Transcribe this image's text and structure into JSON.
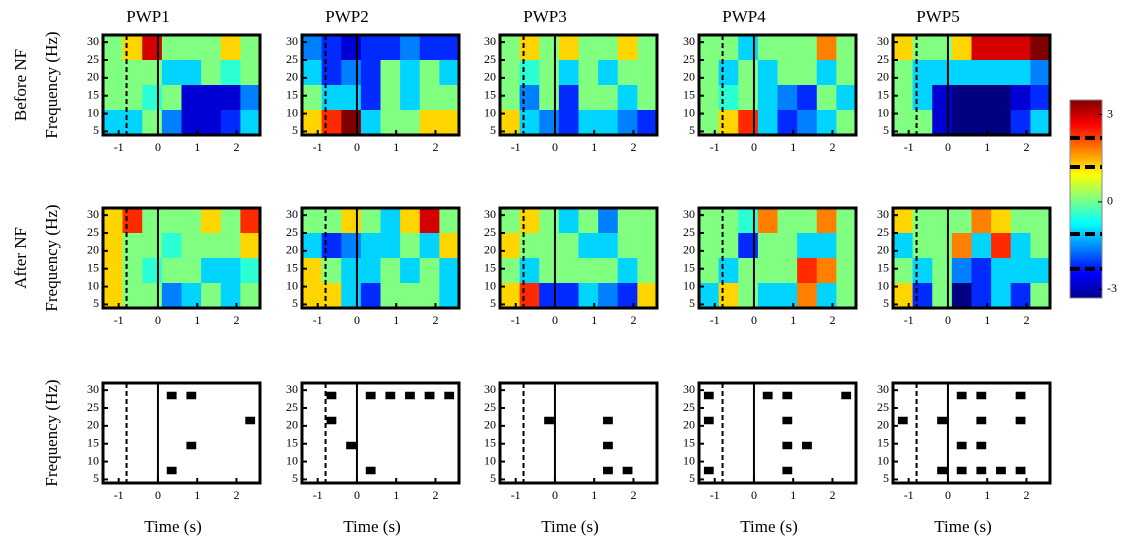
{
  "column_titles": [
    "PWP1",
    "PWP2",
    "PWP3",
    "PWP4",
    "PWP5"
  ],
  "row_labels": [
    "Before NF",
    "After NF"
  ],
  "colorbar": {
    "colormap": "jet",
    "ylim": [
      -3.3,
      3.5
    ],
    "yticks": [
      3,
      0,
      -3
    ],
    "dashes": [
      2.2,
      1.2,
      -1.1,
      -2.3
    ]
  },
  "chart_data": [
    {
      "type": "heatmap",
      "colormap": "jet",
      "ylabel": "Frequency (Hz)",
      "xlim": [
        -1.4,
        2.6
      ],
      "ylim": [
        4,
        32
      ],
      "xticks": [
        -1,
        0,
        1,
        2
      ],
      "yticks": [
        5,
        10,
        15,
        20,
        25,
        30
      ],
      "vlines": [
        {
          "x": -0.8,
          "style": "dashed"
        },
        {
          "x": 0,
          "style": "solid"
        }
      ],
      "x": [
        -1.15,
        -0.65,
        -0.15,
        0.35,
        0.85,
        1.35,
        1.85,
        2.35
      ],
      "y": [
        28.5,
        21.5,
        14.5,
        7.5
      ],
      "values": [
        [
          0,
          1,
          2.5,
          0,
          0,
          0,
          1,
          0
        ],
        [
          0,
          0,
          0,
          -1,
          -1,
          0,
          -0.5,
          0
        ],
        [
          0,
          0,
          -0.5,
          0,
          -2.5,
          -2.5,
          -2.5,
          -1.5
        ],
        [
          -1,
          -1,
          0,
          -1.5,
          -2.5,
          -2.5,
          -2,
          -1
        ]
      ]
    },
    {
      "type": "heatmap",
      "colormap": "jet",
      "xlim": [
        -1.4,
        2.6
      ],
      "ylim": [
        4,
        32
      ],
      "xticks": [
        -1,
        0,
        1,
        2
      ],
      "yticks": [
        5,
        10,
        15,
        20,
        25,
        30
      ],
      "vlines": [
        {
          "x": -0.8,
          "style": "dashed"
        },
        {
          "x": 0,
          "style": "solid"
        }
      ],
      "x": [
        -1.15,
        -0.65,
        -0.15,
        0.35,
        0.85,
        1.35,
        1.85,
        2.35
      ],
      "y": [
        28.5,
        21.5,
        14.5,
        7.5
      ],
      "values": [
        [
          -1.5,
          -2,
          -2.5,
          -2,
          -2,
          -1.5,
          -2,
          -2
        ],
        [
          -1,
          -2,
          -1.5,
          -2,
          0,
          -1,
          0,
          -1
        ],
        [
          0,
          -1,
          -1,
          -2,
          0,
          -1,
          0,
          0
        ],
        [
          1,
          2,
          3,
          -1,
          0,
          0,
          1,
          1
        ]
      ]
    },
    {
      "type": "heatmap",
      "colormap": "jet",
      "xlim": [
        -1.4,
        2.6
      ],
      "ylim": [
        4,
        32
      ],
      "xticks": [
        -1,
        0,
        1,
        2
      ],
      "yticks": [
        5,
        10,
        15,
        20,
        25,
        30
      ],
      "vlines": [
        {
          "x": -0.8,
          "style": "dashed"
        },
        {
          "x": 0,
          "style": "solid"
        }
      ],
      "x": [
        -1.15,
        -0.65,
        -0.15,
        0.35,
        0.85,
        1.35,
        1.85,
        2.35
      ],
      "y": [
        28.5,
        21.5,
        14.5,
        7.5
      ],
      "values": [
        [
          0,
          1,
          0,
          1,
          0,
          0,
          1,
          0
        ],
        [
          0,
          -0.5,
          0,
          -1,
          0,
          -1,
          0,
          0
        ],
        [
          0,
          -1.5,
          0,
          -2,
          0,
          0,
          -1,
          0
        ],
        [
          1,
          -1,
          -1.5,
          -2,
          -1,
          -1,
          -1.5,
          -2
        ]
      ]
    },
    {
      "type": "heatmap",
      "colormap": "jet",
      "xlim": [
        -1.4,
        2.6
      ],
      "ylim": [
        4,
        32
      ],
      "xticks": [
        -1,
        0,
        1,
        2
      ],
      "yticks": [
        5,
        10,
        15,
        20,
        25,
        30
      ],
      "vlines": [
        {
          "x": -0.8,
          "style": "dashed"
        },
        {
          "x": 0,
          "style": "solid"
        }
      ],
      "x": [
        -1.15,
        -0.65,
        -0.15,
        0.35,
        0.85,
        1.35,
        1.85,
        2.35
      ],
      "y": [
        28.5,
        21.5,
        14.5,
        7.5
      ],
      "values": [
        [
          0,
          0,
          -1,
          0,
          0,
          0,
          1.5,
          0
        ],
        [
          0,
          -1,
          0,
          -1,
          0,
          0,
          -1,
          0
        ],
        [
          0,
          -0.5,
          0,
          -1,
          -1.5,
          -2,
          0,
          -1
        ],
        [
          0,
          1,
          2,
          -1,
          -2,
          -1.5,
          -1,
          0
        ]
      ]
    },
    {
      "type": "heatmap",
      "colormap": "jet",
      "xlim": [
        -1.4,
        2.6
      ],
      "ylim": [
        4,
        32
      ],
      "xticks": [
        -1,
        0,
        1,
        2
      ],
      "yticks": [
        5,
        10,
        15,
        20,
        25,
        30
      ],
      "vlines": [
        {
          "x": -0.8,
          "style": "dashed"
        },
        {
          "x": 0,
          "style": "solid"
        }
      ],
      "x": [
        -1.15,
        -0.65,
        -0.15,
        0.35,
        0.85,
        1.35,
        1.85,
        2.35
      ],
      "y": [
        28.5,
        21.5,
        14.5,
        7.5
      ],
      "values": [
        [
          1,
          0,
          0,
          1,
          2.5,
          2.5,
          2.5,
          3
        ],
        [
          0,
          -1,
          -1,
          -1,
          -1,
          -1,
          -1,
          -1.5
        ],
        [
          0,
          -1,
          -2.5,
          -3,
          -3,
          -3,
          -2.5,
          -2
        ],
        [
          0,
          0,
          -2.5,
          -3,
          -3,
          -3,
          -2,
          -1
        ]
      ]
    },
    {
      "type": "heatmap",
      "colormap": "jet",
      "ylabel": "Frequency (Hz)",
      "xlim": [
        -1.4,
        2.6
      ],
      "ylim": [
        4,
        32
      ],
      "xticks": [
        -1,
        0,
        1,
        2
      ],
      "yticks": [
        5,
        10,
        15,
        20,
        25,
        30
      ],
      "vlines": [
        {
          "x": -0.8,
          "style": "dashed"
        },
        {
          "x": 0,
          "style": "solid"
        }
      ],
      "x": [
        -1.15,
        -0.65,
        -0.15,
        0.35,
        0.85,
        1.35,
        1.85,
        2.35
      ],
      "y": [
        28.5,
        21.5,
        14.5,
        7.5
      ],
      "values": [
        [
          1,
          2,
          0,
          0,
          0,
          1,
          0,
          2
        ],
        [
          1,
          0,
          0,
          -0.5,
          0,
          0,
          0,
          1
        ],
        [
          1,
          0,
          -0.5,
          0,
          0,
          -1,
          -1,
          -0.5
        ],
        [
          1,
          0,
          0,
          -1.5,
          -1,
          0,
          -1,
          0
        ]
      ]
    },
    {
      "type": "heatmap",
      "colormap": "jet",
      "xlim": [
        -1.4,
        2.6
      ],
      "ylim": [
        4,
        32
      ],
      "xticks": [
        -1,
        0,
        1,
        2
      ],
      "yticks": [
        5,
        10,
        15,
        20,
        25,
        30
      ],
      "vlines": [
        {
          "x": -0.8,
          "style": "dashed"
        },
        {
          "x": 0,
          "style": "solid"
        }
      ],
      "x": [
        -1.15,
        -0.65,
        -0.15,
        0.35,
        0.85,
        1.35,
        1.85,
        2.35
      ],
      "y": [
        28.5,
        21.5,
        14.5,
        7.5
      ],
      "values": [
        [
          0,
          0,
          1,
          0,
          -1,
          1,
          2.5,
          0
        ],
        [
          -1,
          -2,
          -1.5,
          -1,
          -1,
          0,
          -1,
          1
        ],
        [
          1,
          0,
          -1,
          -1,
          0,
          -1,
          0,
          -1
        ],
        [
          1,
          1,
          -1,
          -2,
          0,
          0,
          0,
          -1
        ]
      ]
    },
    {
      "type": "heatmap",
      "colormap": "jet",
      "xlim": [
        -1.4,
        2.6
      ],
      "ylim": [
        4,
        32
      ],
      "xticks": [
        -1,
        0,
        1,
        2
      ],
      "yticks": [
        5,
        10,
        15,
        20,
        25,
        30
      ],
      "vlines": [
        {
          "x": -0.8,
          "style": "dashed"
        },
        {
          "x": 0,
          "style": "solid"
        }
      ],
      "x": [
        -1.15,
        -0.65,
        -0.15,
        0.35,
        0.85,
        1.35,
        1.85,
        2.35
      ],
      "y": [
        28.5,
        21.5,
        14.5,
        7.5
      ],
      "values": [
        [
          0,
          1,
          0,
          -1,
          0,
          -1.5,
          0,
          0
        ],
        [
          1,
          0,
          0,
          0,
          -1,
          -1,
          0,
          0
        ],
        [
          0,
          -1,
          0,
          0,
          0,
          0,
          -1,
          0
        ],
        [
          1,
          2,
          -2,
          -2,
          -1,
          -1.5,
          -2,
          1
        ]
      ]
    },
    {
      "type": "heatmap",
      "colormap": "jet",
      "xlim": [
        -1.4,
        2.6
      ],
      "ylim": [
        4,
        32
      ],
      "xticks": [
        -1,
        0,
        1,
        2
      ],
      "yticks": [
        5,
        10,
        15,
        20,
        25,
        30
      ],
      "vlines": [
        {
          "x": -0.8,
          "style": "dashed"
        },
        {
          "x": 0,
          "style": "solid"
        }
      ],
      "x": [
        -1.15,
        -0.65,
        -0.15,
        0.35,
        0.85,
        1.35,
        1.85,
        2.35
      ],
      "y": [
        28.5,
        21.5,
        14.5,
        7.5
      ],
      "values": [
        [
          0,
          0,
          -0.5,
          1.5,
          0,
          0,
          1.5,
          0
        ],
        [
          0,
          0,
          -2,
          0,
          0,
          -1,
          -1,
          0
        ],
        [
          0,
          -1,
          0,
          0,
          0,
          2,
          1.5,
          0
        ],
        [
          -1,
          1,
          0,
          -1,
          -1,
          1.5,
          -1,
          0
        ]
      ]
    },
    {
      "type": "heatmap",
      "colormap": "jet",
      "xlim": [
        -1.4,
        2.6
      ],
      "ylim": [
        4,
        32
      ],
      "xticks": [
        -1,
        0,
        1,
        2
      ],
      "yticks": [
        5,
        10,
        15,
        20,
        25,
        30
      ],
      "vlines": [
        {
          "x": -0.8,
          "style": "dashed"
        },
        {
          "x": 0,
          "style": "solid"
        }
      ],
      "x": [
        -1.15,
        -0.65,
        -0.15,
        0.35,
        0.85,
        1.35,
        1.85,
        2.35
      ],
      "y": [
        28.5,
        21.5,
        14.5,
        7.5
      ],
      "values": [
        [
          1,
          0,
          0,
          0,
          1.5,
          1,
          0,
          0
        ],
        [
          -1,
          0,
          0,
          1.5,
          -1,
          2,
          -1,
          0
        ],
        [
          0,
          -1,
          0,
          -1.5,
          -2,
          -1,
          -1,
          -1
        ],
        [
          1,
          -2,
          0,
          -3,
          -2,
          -1,
          -2,
          0
        ]
      ]
    },
    {
      "type": "binary",
      "color": "#000000",
      "ylabel": "Frequency (Hz)",
      "xlabel": "Time (s)",
      "xlim": [
        -1.4,
        2.6
      ],
      "ylim": [
        4,
        32
      ],
      "xticks": [
        -1,
        0,
        1,
        2
      ],
      "yticks": [
        5,
        10,
        15,
        20,
        25,
        30
      ],
      "vlines": [
        {
          "x": -0.8,
          "style": "dashed"
        },
        {
          "x": 0,
          "style": "solid"
        }
      ],
      "x": [
        -1.15,
        -0.65,
        -0.15,
        0.35,
        0.85,
        1.35,
        1.85,
        2.35
      ],
      "y": [
        28.5,
        21.5,
        14.5,
        7.5
      ],
      "values": [
        [
          0,
          0,
          0,
          1,
          1,
          0,
          0,
          0
        ],
        [
          0,
          0,
          0,
          0,
          0,
          0,
          0,
          1
        ],
        [
          0,
          0,
          0,
          0,
          1,
          0,
          0,
          0
        ],
        [
          0,
          0,
          0,
          1,
          0,
          0,
          0,
          0
        ]
      ]
    },
    {
      "type": "binary",
      "color": "#000000",
      "xlabel": "Time (s)",
      "xlim": [
        -1.4,
        2.6
      ],
      "ylim": [
        4,
        32
      ],
      "xticks": [
        -1,
        0,
        1,
        2
      ],
      "yticks": [
        5,
        10,
        15,
        20,
        25,
        30
      ],
      "vlines": [
        {
          "x": -0.8,
          "style": "dashed"
        },
        {
          "x": 0,
          "style": "solid"
        }
      ],
      "x": [
        -1.15,
        -0.65,
        -0.15,
        0.35,
        0.85,
        1.35,
        1.85,
        2.35
      ],
      "y": [
        28.5,
        21.5,
        14.5,
        7.5
      ],
      "values": [
        [
          0,
          1,
          0,
          1,
          1,
          1,
          1,
          1
        ],
        [
          0,
          1,
          0,
          0,
          0,
          0,
          0,
          0
        ],
        [
          0,
          0,
          1,
          0,
          0,
          0,
          0,
          0
        ],
        [
          0,
          0,
          0,
          1,
          0,
          0,
          0,
          0
        ]
      ]
    },
    {
      "type": "binary",
      "color": "#000000",
      "xlabel": "Time (s)",
      "xlim": [
        -1.4,
        2.6
      ],
      "ylim": [
        4,
        32
      ],
      "xticks": [
        -1,
        0,
        1,
        2
      ],
      "yticks": [
        5,
        10,
        15,
        20,
        25,
        30
      ],
      "vlines": [
        {
          "x": -0.8,
          "style": "dashed"
        },
        {
          "x": 0,
          "style": "solid"
        }
      ],
      "x": [
        -1.15,
        -0.65,
        -0.15,
        0.35,
        0.85,
        1.35,
        1.85,
        2.35
      ],
      "y": [
        28.5,
        21.5,
        14.5,
        7.5
      ],
      "values": [
        [
          0,
          0,
          0,
          0,
          0,
          0,
          0,
          0
        ],
        [
          0,
          0,
          1,
          0,
          0,
          1,
          0,
          0
        ],
        [
          0,
          0,
          0,
          0,
          0,
          1,
          0,
          0
        ],
        [
          0,
          0,
          0,
          0,
          0,
          1,
          1,
          0
        ]
      ]
    },
    {
      "type": "binary",
      "color": "#000000",
      "xlabel": "Time (s)",
      "xlim": [
        -1.4,
        2.6
      ],
      "ylim": [
        4,
        32
      ],
      "xticks": [
        -1,
        0,
        1,
        2
      ],
      "yticks": [
        5,
        10,
        15,
        20,
        25,
        30
      ],
      "vlines": [
        {
          "x": -0.8,
          "style": "dashed"
        },
        {
          "x": 0,
          "style": "solid"
        }
      ],
      "x": [
        -1.15,
        -0.65,
        -0.15,
        0.35,
        0.85,
        1.35,
        1.85,
        2.35
      ],
      "y": [
        28.5,
        21.5,
        14.5,
        7.5
      ],
      "values": [
        [
          1,
          0,
          0,
          1,
          1,
          0,
          0,
          1
        ],
        [
          1,
          0,
          0,
          0,
          1,
          0,
          0,
          0
        ],
        [
          0,
          0,
          0,
          0,
          1,
          1,
          0,
          0
        ],
        [
          1,
          0,
          0,
          0,
          1,
          0,
          0,
          0
        ]
      ]
    },
    {
      "type": "binary",
      "color": "#000000",
      "xlabel": "Time (s)",
      "xlim": [
        -1.4,
        2.6
      ],
      "ylim": [
        4,
        32
      ],
      "xticks": [
        -1,
        0,
        1,
        2
      ],
      "yticks": [
        5,
        10,
        15,
        20,
        25,
        30
      ],
      "vlines": [
        {
          "x": -0.8,
          "style": "dashed"
        },
        {
          "x": 0,
          "style": "solid"
        }
      ],
      "x": [
        -1.15,
        -0.65,
        -0.15,
        0.35,
        0.85,
        1.35,
        1.85,
        2.35
      ],
      "y": [
        28.5,
        21.5,
        14.5,
        7.5
      ],
      "values": [
        [
          0,
          0,
          0,
          1,
          1,
          0,
          1,
          0
        ],
        [
          1,
          0,
          1,
          0,
          1,
          0,
          1,
          0
        ],
        [
          0,
          0,
          0,
          1,
          1,
          0,
          0,
          0
        ],
        [
          0,
          0,
          1,
          1,
          1,
          1,
          1,
          0
        ]
      ]
    }
  ]
}
